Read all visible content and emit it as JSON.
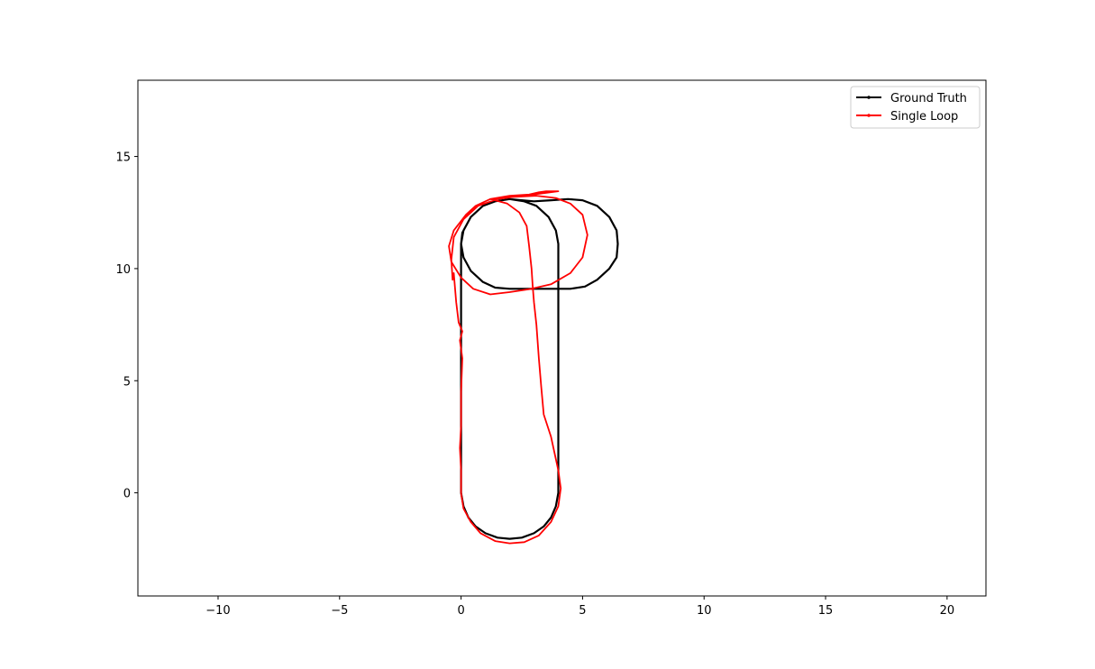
{
  "chart_data": {
    "type": "line",
    "title": "",
    "xlabel": "",
    "ylabel": "",
    "xlim": [
      -13.3,
      21.6
    ],
    "ylim": [
      -4.6,
      18.4
    ],
    "xticks": [
      -10,
      -5,
      0,
      5,
      10,
      15,
      20
    ],
    "xtick_labels": [
      "−10",
      "−5",
      "0",
      "5",
      "10",
      "15",
      "20"
    ],
    "yticks": [
      0,
      5,
      10,
      15
    ],
    "ytick_labels": [
      "0",
      "5",
      "10",
      "15"
    ],
    "grid": false,
    "legend_position": "top-right",
    "series": [
      {
        "name": "Ground Truth",
        "color": "#000000",
        "points": [
          [
            0.0,
            0.0
          ],
          [
            0.1,
            -0.6
          ],
          [
            0.3,
            -1.1
          ],
          [
            0.6,
            -1.5
          ],
          [
            1.0,
            -1.8
          ],
          [
            1.5,
            -2.0
          ],
          [
            2.0,
            -2.05
          ],
          [
            2.5,
            -2.0
          ],
          [
            3.0,
            -1.8
          ],
          [
            3.4,
            -1.5
          ],
          [
            3.7,
            -1.1
          ],
          [
            3.9,
            -0.6
          ],
          [
            4.0,
            0.0
          ],
          [
            4.0,
            2.0
          ],
          [
            4.0,
            5.0
          ],
          [
            4.0,
            8.0
          ],
          [
            4.0,
            9.1
          ],
          [
            4.0,
            11.0
          ],
          [
            4.0,
            11.1
          ],
          [
            3.9,
            11.7
          ],
          [
            3.6,
            12.3
          ],
          [
            3.1,
            12.8
          ],
          [
            2.6,
            13.0
          ],
          [
            2.0,
            13.1
          ],
          [
            1.4,
            13.0
          ],
          [
            0.9,
            12.8
          ],
          [
            0.4,
            12.3
          ],
          [
            0.1,
            11.7
          ],
          [
            0.0,
            11.1
          ],
          [
            0.1,
            10.5
          ],
          [
            0.4,
            9.9
          ],
          [
            0.9,
            9.4
          ],
          [
            1.4,
            9.15
          ],
          [
            2.0,
            9.1
          ],
          [
            3.0,
            9.1
          ],
          [
            4.0,
            9.1
          ],
          [
            4.5,
            9.1
          ],
          [
            5.1,
            9.2
          ],
          [
            5.6,
            9.5
          ],
          [
            6.1,
            10.0
          ],
          [
            6.4,
            10.5
          ],
          [
            6.45,
            11.1
          ],
          [
            6.4,
            11.7
          ],
          [
            6.1,
            12.3
          ],
          [
            5.6,
            12.8
          ],
          [
            5.0,
            13.05
          ],
          [
            4.4,
            13.1
          ],
          [
            3.7,
            13.05
          ],
          [
            3.0,
            13.0
          ],
          [
            2.0,
            13.1
          ],
          [
            1.4,
            13.0
          ],
          [
            0.9,
            12.8
          ],
          [
            0.4,
            12.3
          ],
          [
            0.05,
            11.6
          ],
          [
            0.0,
            11.1
          ],
          [
            0.0,
            9.0
          ],
          [
            0.0,
            6.0
          ],
          [
            0.0,
            3.0
          ],
          [
            0.0,
            0.0
          ]
        ]
      },
      {
        "name": "Single Loop",
        "color": "#ff0000",
        "points": [
          [
            0.0,
            0.0
          ],
          [
            0.1,
            -0.7
          ],
          [
            0.4,
            -1.3
          ],
          [
            0.8,
            -1.8
          ],
          [
            1.4,
            -2.15
          ],
          [
            2.0,
            -2.25
          ],
          [
            2.6,
            -2.2
          ],
          [
            3.2,
            -1.9
          ],
          [
            3.7,
            -1.3
          ],
          [
            4.0,
            -0.6
          ],
          [
            4.1,
            0.2
          ],
          [
            4.0,
            1.0
          ],
          [
            3.7,
            2.5
          ],
          [
            3.4,
            3.5
          ],
          [
            3.3,
            4.7
          ],
          [
            3.2,
            6.0
          ],
          [
            3.1,
            7.5
          ],
          [
            3.0,
            8.5
          ],
          [
            2.95,
            9.2
          ],
          [
            2.9,
            10.0
          ],
          [
            2.8,
            11.0
          ],
          [
            2.7,
            11.9
          ],
          [
            2.4,
            12.5
          ],
          [
            1.9,
            12.9
          ],
          [
            1.2,
            13.1
          ],
          [
            2.2,
            13.2
          ],
          [
            3.1,
            13.25
          ],
          [
            3.9,
            13.15
          ],
          [
            4.5,
            12.9
          ],
          [
            5.0,
            12.4
          ],
          [
            5.2,
            11.5
          ],
          [
            5.0,
            10.5
          ],
          [
            4.5,
            9.8
          ],
          [
            3.7,
            9.3
          ],
          [
            2.9,
            9.1
          ],
          [
            2.0,
            8.95
          ],
          [
            1.2,
            8.85
          ],
          [
            0.5,
            9.1
          ],
          [
            0.0,
            9.6
          ],
          [
            -0.4,
            10.3
          ],
          [
            -0.5,
            11.0
          ],
          [
            -0.3,
            11.7
          ],
          [
            0.2,
            12.4
          ],
          [
            0.6,
            12.8
          ],
          [
            1.2,
            13.1
          ],
          [
            2.0,
            13.25
          ],
          [
            2.8,
            13.3
          ],
          [
            3.2,
            13.4
          ],
          [
            3.5,
            13.45
          ],
          [
            4.0,
            13.45
          ],
          [
            3.3,
            13.35
          ],
          [
            2.5,
            13.25
          ],
          [
            1.5,
            13.1
          ],
          [
            0.7,
            12.8
          ],
          [
            0.1,
            12.2
          ],
          [
            -0.3,
            11.4
          ],
          [
            -0.4,
            10.4
          ],
          [
            -0.35,
            9.5
          ],
          [
            -0.3,
            9.8
          ],
          [
            -0.2,
            8.5
          ],
          [
            -0.1,
            7.6
          ],
          [
            0.05,
            7.2
          ],
          [
            -0.05,
            6.8
          ],
          [
            0.05,
            6.0
          ],
          [
            0.0,
            4.5
          ],
          [
            0.0,
            3.0
          ],
          [
            -0.05,
            2.0
          ],
          [
            0.0,
            1.0
          ],
          [
            0.0,
            0.0
          ]
        ]
      }
    ]
  }
}
